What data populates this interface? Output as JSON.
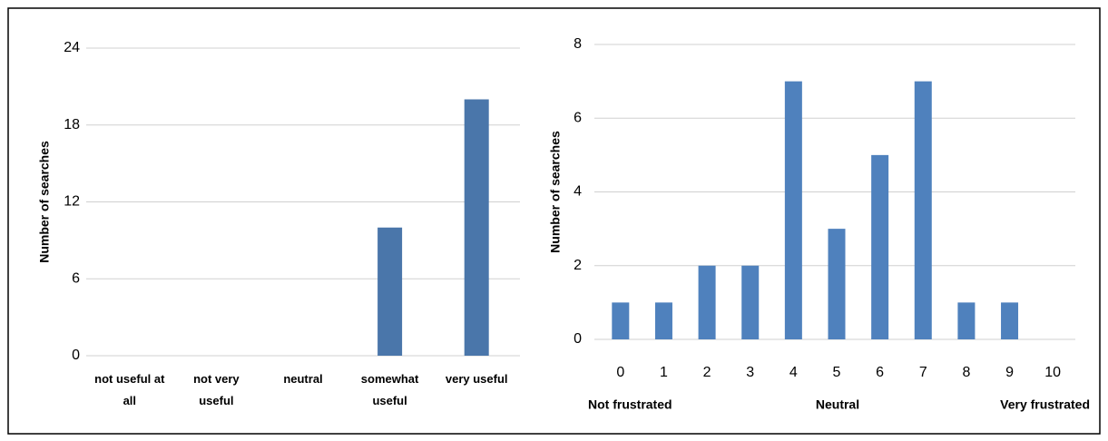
{
  "chart_data": [
    {
      "type": "bar",
      "y_label": "Number of searches",
      "categories": [
        "not useful at all",
        "not very useful",
        "neutral",
        "somewhat useful",
        "very useful"
      ],
      "values": [
        0,
        0,
        0,
        10,
        20
      ],
      "color": "#4a76aa",
      "ylim": [
        0,
        24
      ],
      "yticks": [
        0,
        6,
        12,
        18,
        24
      ],
      "grid": true
    },
    {
      "type": "bar",
      "y_label": "Number of searches",
      "categories": [
        0,
        1,
        2,
        3,
        4,
        5,
        6,
        7,
        8,
        9,
        10
      ],
      "values": [
        1,
        1,
        2,
        2,
        7,
        3,
        5,
        7,
        1,
        1,
        0
      ],
      "color": "#4f81bd",
      "ylim": [
        0,
        8
      ],
      "yticks": [
        0,
        2,
        4,
        6,
        8
      ],
      "grid": true,
      "annotations": [
        "Not frustrated",
        "Neutral",
        "Very frustrated"
      ]
    }
  ]
}
